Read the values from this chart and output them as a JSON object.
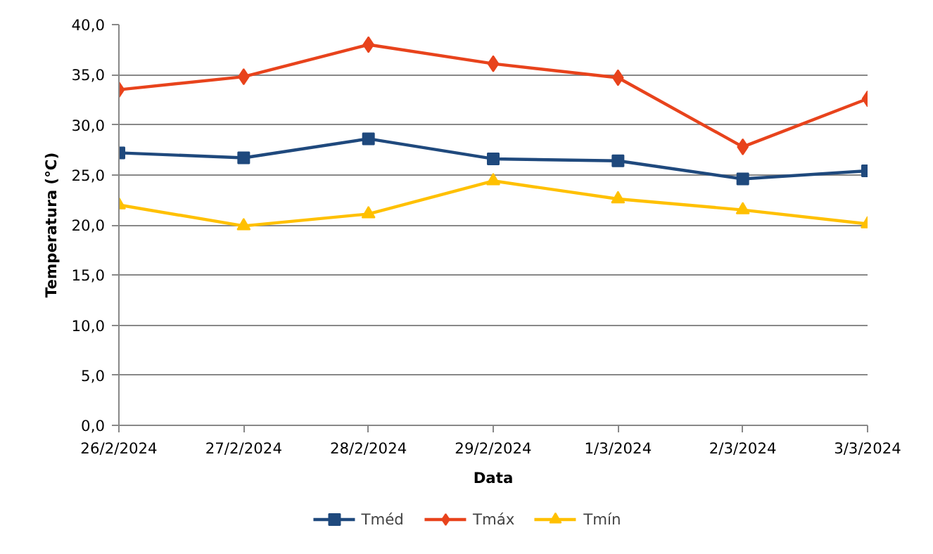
{
  "chart_data": {
    "type": "line",
    "xlabel": "Data",
    "ylabel": "Temperatura (°C)",
    "categories": [
      "26/2/2024",
      "27/2/2024",
      "28/2/2024",
      "29/2/2024",
      "1/3/2024",
      "2/3/2024",
      "3/3/2024"
    ],
    "series": [
      {
        "name": "Tméd",
        "color": "#1f497d",
        "marker": "square",
        "values": [
          27.2,
          26.7,
          28.6,
          26.6,
          26.4,
          24.6,
          25.4
        ]
      },
      {
        "name": "Tmáx",
        "color": "#e8431c",
        "marker": "diamond",
        "values": [
          33.5,
          34.8,
          38.0,
          36.1,
          34.7,
          27.8,
          32.6
        ]
      },
      {
        "name": "Tmín",
        "color": "#ffc000",
        "marker": "triangle",
        "values": [
          22.0,
          19.9,
          21.1,
          24.4,
          22.6,
          21.5,
          20.1
        ]
      }
    ],
    "ylim": [
      0,
      40
    ],
    "yticks": [
      {
        "value": 0,
        "label": "0,0"
      },
      {
        "value": 5,
        "label": "5,0"
      },
      {
        "value": 10,
        "label": "10,0"
      },
      {
        "value": 15,
        "label": "15,0"
      },
      {
        "value": 20,
        "label": "20,0"
      },
      {
        "value": 25,
        "label": "25,0"
      },
      {
        "value": 30,
        "label": "30,0"
      },
      {
        "value": 35,
        "label": "35,0"
      },
      {
        "value": 40,
        "label": "40,0"
      }
    ],
    "grid": "y",
    "legend": "bottom",
    "line_style": "solid"
  }
}
